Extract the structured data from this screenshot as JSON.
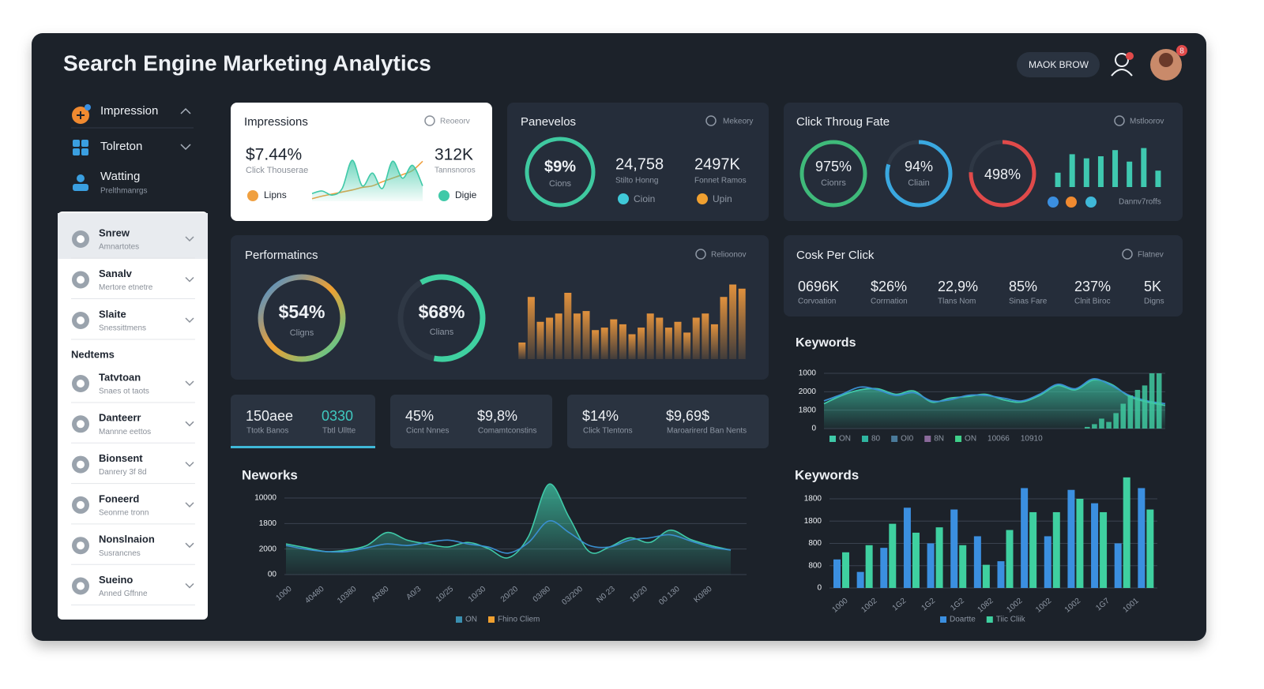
{
  "header": {
    "title": "Search Engine Marketing Analytics",
    "button": "MAOK BROW",
    "avatar_badge": "8"
  },
  "sidebar": {
    "top": [
      {
        "label": "Impression"
      },
      {
        "label": "Tolreton"
      },
      {
        "label": "Watting",
        "sub": "Prelthmanrgs"
      }
    ],
    "items": [
      {
        "label": "Snrew",
        "sub": "Amnartotes"
      },
      {
        "label": "Sanalv",
        "sub": "Mertore etnetre"
      },
      {
        "label": "Slaite",
        "sub": "Snessittmens"
      }
    ],
    "section": "Nedtems",
    "items2": [
      {
        "label": "Tatvtoan",
        "sub": "Snaes ot taots"
      },
      {
        "label": "Danteerr",
        "sub": "Mannne eettos"
      },
      {
        "label": "Bionsent",
        "sub": "Danrery 3f 8d"
      },
      {
        "label": "Foneerd",
        "sub": "Seonrne tronn"
      },
      {
        "label": "Nonslnaion",
        "sub": "Susrancnes"
      },
      {
        "label": "Sueino",
        "sub": "Anned Gffnne"
      }
    ]
  },
  "cards": {
    "impressions": {
      "title": "Impressions",
      "badge": "Reoeorv",
      "value1": "$7.44%",
      "label1": "Click Thouserae",
      "value2": "312K",
      "label2": "Tannsnoros"
    },
    "panevelos": {
      "title": "Panevelos",
      "badge": "Mekeory",
      "ring_value": "$9%",
      "ring_label": "Cions",
      "value1": "24,758",
      "label1": "Stilto Honng",
      "value2": "2497K",
      "label2": "Fonnet Ramos",
      "legend": [
        "Cioin",
        "Upin"
      ]
    },
    "ctr": {
      "title": "Click Throug Fate",
      "badge": "Mstloorov",
      "rings": [
        {
          "value": "975%",
          "label": "Cionrs"
        },
        {
          "value": "94%",
          "label": "Cliain"
        },
        {
          "value": "498%"
        }
      ],
      "note": "Dannv7roffs"
    },
    "performance": {
      "title": "Performatincs",
      "badge": "Relioonov",
      "rings": [
        {
          "value": "$54%",
          "label": "Cligns"
        },
        {
          "value": "$68%",
          "label": "Clians"
        }
      ]
    },
    "cpc": {
      "title": "Cosk Per Click",
      "badge": "Flatnev",
      "metrics": [
        {
          "value": "0696K",
          "label": "Corvoation"
        },
        {
          "value": "$26%",
          "label": "Corrnation"
        },
        {
          "value": "22,9%",
          "label": "Tlans Nom"
        },
        {
          "value": "85%",
          "label": "Sinas Fare"
        },
        {
          "value": "237%",
          "label": "Clnit Biroc"
        },
        {
          "value": "5K",
          "label": "Digns"
        }
      ]
    },
    "stats": [
      {
        "items": [
          {
            "value": "150aee",
            "label": "Ttotk Banos"
          },
          {
            "value": "0330",
            "label": "Tbtl Ulltte"
          }
        ]
      },
      {
        "items": [
          {
            "value": "45%",
            "label": "Cicnt Nnnes"
          },
          {
            "value": "$9,8%",
            "label": "Comamtconstins"
          }
        ]
      },
      {
        "items": [
          {
            "value": "$14%",
            "label": "Click Tlentons"
          },
          {
            "value": "$9,69$",
            "label": "Maroarirerd Ban Nents"
          }
        ]
      }
    ],
    "keywords_title": "Keywords",
    "networks_title": "Neworks",
    "keywords2_title": "Keywords"
  },
  "charts": {
    "impressions_spark": {
      "ylim": [
        0,
        100
      ],
      "series": [
        {
          "name": "Lipns",
          "color": "#f0a040",
          "values": [
            5,
            10,
            14,
            18,
            22,
            27,
            30,
            38,
            45,
            52,
            60,
            78
          ]
        },
        {
          "name": "Digie",
          "color": "#3fc9a8",
          "fill": true,
          "values": [
            15,
            20,
            12,
            25,
            80,
            30,
            55,
            25,
            78,
            45,
            70,
            30
          ]
        }
      ]
    },
    "ctr_bars": {
      "color": "#3fc9b0",
      "ylim": [
        0,
        100
      ],
      "values": [
        35,
        80,
        70,
        75,
        90,
        62,
        95,
        40
      ]
    },
    "performance_bars": {
      "color": "#d98a3a",
      "ylim": [
        0,
        100
      ],
      "values": [
        20,
        75,
        45,
        50,
        55,
        80,
        55,
        58,
        35,
        38,
        48,
        42,
        30,
        38,
        55,
        50,
        38,
        45,
        32,
        50,
        55,
        42,
        75,
        90,
        85
      ]
    },
    "keywords_area": {
      "ylim": [
        0,
        100
      ],
      "y_labels": [
        "1000",
        "2000",
        "1800",
        "0"
      ],
      "series": [
        {
          "color": "#3fc9a8",
          "fill": true,
          "values": [
            45,
            60,
            70,
            72,
            62,
            68,
            48,
            55,
            58,
            62,
            52,
            48,
            60,
            78,
            70,
            88,
            80,
            58,
            48,
            42
          ]
        },
        {
          "color": "#3a8fd0",
          "values": [
            50,
            62,
            75,
            70,
            60,
            65,
            50,
            52,
            60,
            60,
            55,
            50,
            62,
            80,
            72,
            90,
            78,
            60,
            50,
            45
          ]
        }
      ],
      "bars": {
        "color": "#3fc9a0",
        "values": [
          3,
          8,
          18,
          12,
          28,
          45,
          60,
          70,
          78,
          100,
          100
        ]
      },
      "legend": [
        {
          "name": "ON",
          "color": "#3fc9a8"
        },
        {
          "name": "80",
          "color": "#2fb5a0"
        },
        {
          "name": "OI0",
          "color": "#4a7a9a"
        },
        {
          "name": "8N",
          "color": "#8a6a9a"
        },
        {
          "name": "ON",
          "color": "#3fd08a"
        },
        {
          "name": "10066"
        },
        {
          "name": "10910"
        }
      ]
    },
    "networks": {
      "ylim": [
        0,
        100
      ],
      "y_labels": [
        "10000",
        "1800",
        "2000",
        "00"
      ],
      "x_labels": [
        "1000",
        "40480",
        "10380",
        "AR80",
        "A0/3",
        "10/25",
        "10/30",
        "20/20",
        "03/80",
        "03/200",
        "N0 23",
        "10/20",
        "00 130",
        "K0/80"
      ],
      "series": [
        {
          "color": "#3fc9a8",
          "fill": true,
          "values": [
            40,
            35,
            30,
            32,
            38,
            55,
            45,
            40,
            36,
            42,
            34,
            22,
            50,
            118,
            75,
            30,
            36,
            48,
            42,
            58,
            46,
            38,
            32
          ]
        },
        {
          "color": "#3a8fd0",
          "values": [
            38,
            33,
            30,
            30,
            35,
            40,
            38,
            42,
            45,
            40,
            36,
            28,
            42,
            70,
            55,
            38,
            36,
            45,
            48,
            52,
            44,
            36,
            32
          ]
        }
      ],
      "legend": [
        {
          "name": "ON",
          "color": "#3a8fb0"
        },
        {
          "name": "Fhino Cliem",
          "color": "#f0a030"
        }
      ]
    },
    "keywords_bars": {
      "ylim": [
        0,
        100
      ],
      "y_labels": [
        "1800",
        "1800",
        "800",
        "800",
        "0"
      ],
      "x_labels": [
        "1000",
        "1002",
        "1G2",
        "1G2",
        "1G2",
        "1082",
        "1002",
        "1002",
        "1002",
        "1G7",
        "1001"
      ],
      "series": [
        {
          "name": "Doartte",
          "color": "#3b8fe0",
          "values": [
            32,
            18,
            45,
            90,
            50,
            88,
            58,
            30,
            112,
            58,
            110,
            95,
            50,
            112
          ]
        },
        {
          "name": "Tiic Cliik",
          "color": "#3fd0a0",
          "values": [
            40,
            48,
            72,
            62,
            68,
            48,
            26,
            65,
            85,
            85,
            100,
            85,
            124,
            88
          ]
        }
      ]
    }
  }
}
